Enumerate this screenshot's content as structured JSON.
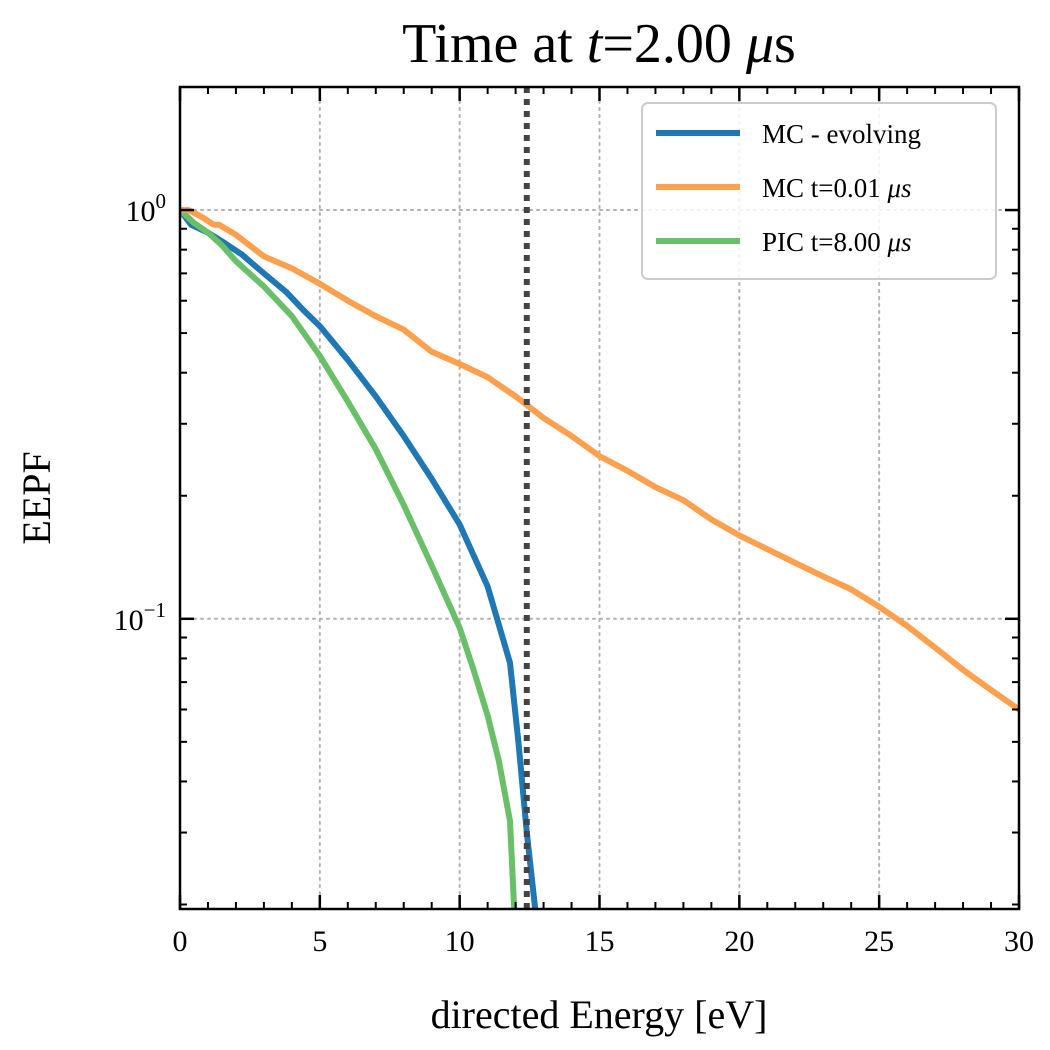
{
  "chart_data": {
    "type": "line",
    "title": {
      "prefix": "Time at ",
      "var": "t",
      "mid": "=2.00 ",
      "mu": "μ",
      "unit": "s"
    },
    "xlabel": "directed Energy [eV]",
    "ylabel": "EEPF",
    "xlim": [
      0,
      30
    ],
    "ylim": [
      0.0195,
      2.0
    ],
    "yscale": "log",
    "xticks": [
      0,
      5,
      10,
      15,
      20,
      25,
      30
    ],
    "xtick_labels": [
      "0",
      "5",
      "10",
      "15",
      "20",
      "25",
      "30"
    ],
    "yticks": [
      {
        "value": 1,
        "base": "10",
        "exp": "0"
      },
      {
        "value": 0.1,
        "base": "10",
        "exp": "−1"
      }
    ],
    "grid": true,
    "legend_position": "upper right",
    "vline": {
      "x": 12.4,
      "style": "dotted",
      "color": "#444444"
    },
    "series": [
      {
        "name": "MC - evolving",
        "color": "#1f77b4",
        "x": [
          0,
          0.4,
          1,
          1.6,
          2.2,
          3,
          3.8,
          4.4,
          5,
          6,
          7,
          8,
          9,
          10,
          11,
          11.8,
          12.1,
          12.4,
          12.7
        ],
        "y": [
          1.0,
          0.92,
          0.88,
          0.83,
          0.78,
          0.7,
          0.63,
          0.57,
          0.52,
          0.43,
          0.35,
          0.28,
          0.22,
          0.17,
          0.12,
          0.078,
          0.05,
          0.03,
          0.0195
        ]
      },
      {
        "name": "MC t=0.01 μs",
        "color": "#ffa04f",
        "x": [
          0,
          0.3,
          0.8,
          1.2,
          1.4,
          2,
          3,
          4,
          5,
          6,
          7,
          8,
          9,
          10,
          11,
          12,
          13,
          14,
          15,
          16,
          17,
          18,
          19,
          20,
          21,
          22,
          23,
          24,
          25,
          26,
          27,
          28,
          29,
          30
        ],
        "y": [
          1.0,
          1.0,
          0.96,
          0.92,
          0.92,
          0.87,
          0.77,
          0.72,
          0.66,
          0.6,
          0.55,
          0.51,
          0.45,
          0.42,
          0.39,
          0.35,
          0.31,
          0.28,
          0.25,
          0.23,
          0.21,
          0.195,
          0.175,
          0.16,
          0.148,
          0.137,
          0.127,
          0.118,
          0.107,
          0.096,
          0.085,
          0.075,
          0.067,
          0.06
        ]
      },
      {
        "name": "PIC t=8.00 μs",
        "color": "#6abf69",
        "x": [
          0,
          0.5,
          1,
          1.5,
          2,
          3,
          4,
          5,
          6,
          7,
          8,
          9,
          10,
          10.5,
          11,
          11.4,
          11.8,
          11.95
        ],
        "y": [
          1.0,
          0.93,
          0.88,
          0.82,
          0.75,
          0.65,
          0.55,
          0.44,
          0.34,
          0.26,
          0.19,
          0.135,
          0.095,
          0.075,
          0.058,
          0.045,
          0.032,
          0.0195
        ]
      }
    ]
  }
}
